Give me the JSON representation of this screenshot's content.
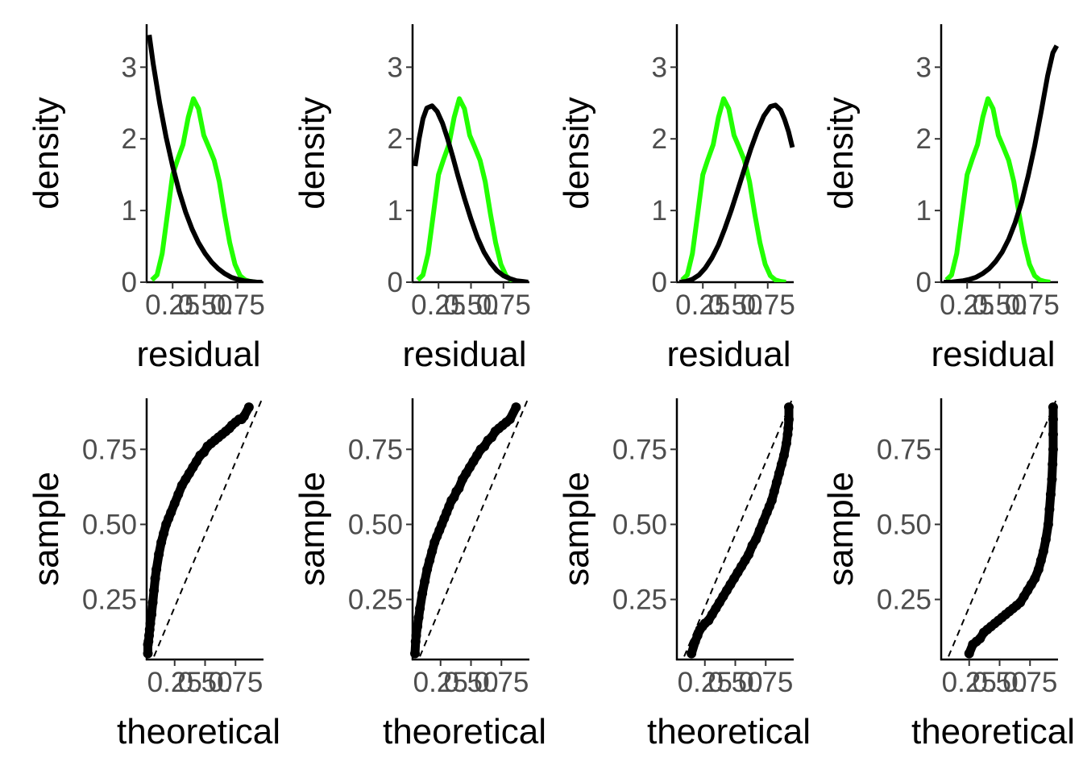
{
  "chart_data": [
    {
      "type": "line",
      "panel": "density-1",
      "xlabel": "residual",
      "ylabel": "density",
      "xlim": [
        0.05,
        0.95
      ],
      "ylim": [
        0,
        3.6
      ],
      "xticks": [
        "0.25",
        "0.50",
        "0.75"
      ],
      "yticks": [
        "0",
        "1",
        "2",
        "3"
      ],
      "colors": {
        "empirical": "#22ff00",
        "reference": "#000000"
      },
      "series": [
        {
          "role": "empirical",
          "x": [
            0.09,
            0.13,
            0.17,
            0.21,
            0.25,
            0.29,
            0.33,
            0.37,
            0.41,
            0.45,
            0.49,
            0.53,
            0.57,
            0.61,
            0.65,
            0.69,
            0.73,
            0.77,
            0.81,
            0.85,
            0.89
          ],
          "y": [
            0.03,
            0.1,
            0.4,
            0.95,
            1.5,
            1.72,
            1.92,
            2.3,
            2.56,
            2.42,
            2.05,
            1.88,
            1.7,
            1.4,
            0.95,
            0.55,
            0.25,
            0.09,
            0.03,
            0.01,
            0.0
          ]
        },
        {
          "role": "reference",
          "x": [
            0.07,
            0.1,
            0.15,
            0.2,
            0.25,
            0.3,
            0.35,
            0.4,
            0.45,
            0.5,
            0.55,
            0.6,
            0.65,
            0.7,
            0.75,
            0.8,
            0.85,
            0.9,
            0.94
          ],
          "y": [
            3.45,
            3.05,
            2.5,
            2.02,
            1.62,
            1.27,
            0.98,
            0.74,
            0.55,
            0.4,
            0.28,
            0.19,
            0.12,
            0.07,
            0.04,
            0.02,
            0.01,
            0.0,
            0.0
          ]
        }
      ]
    },
    {
      "type": "line",
      "panel": "density-2",
      "xlabel": "residual",
      "ylabel": "density",
      "xlim": [
        0.05,
        0.95
      ],
      "ylim": [
        0,
        3.6
      ],
      "xticks": [
        "0.25",
        "0.50",
        "0.75"
      ],
      "yticks": [
        "0",
        "1",
        "2",
        "3"
      ],
      "colors": {
        "empirical": "#22ff00",
        "reference": "#000000"
      },
      "series": [
        {
          "role": "empirical",
          "x": [
            0.09,
            0.13,
            0.17,
            0.21,
            0.25,
            0.29,
            0.33,
            0.37,
            0.41,
            0.45,
            0.49,
            0.53,
            0.57,
            0.61,
            0.65,
            0.69,
            0.73,
            0.77,
            0.81,
            0.85,
            0.89
          ],
          "y": [
            0.03,
            0.1,
            0.4,
            0.95,
            1.5,
            1.72,
            1.92,
            2.3,
            2.56,
            2.42,
            2.05,
            1.88,
            1.7,
            1.4,
            0.95,
            0.55,
            0.25,
            0.09,
            0.03,
            0.01,
            0.0
          ]
        },
        {
          "role": "reference",
          "x": [
            0.07,
            0.1,
            0.13,
            0.16,
            0.2,
            0.24,
            0.28,
            0.32,
            0.36,
            0.4,
            0.45,
            0.5,
            0.55,
            0.6,
            0.65,
            0.7,
            0.75,
            0.8,
            0.85,
            0.9,
            0.94
          ],
          "y": [
            1.62,
            2.0,
            2.28,
            2.43,
            2.46,
            2.38,
            2.22,
            2.0,
            1.75,
            1.48,
            1.17,
            0.88,
            0.62,
            0.42,
            0.27,
            0.16,
            0.09,
            0.05,
            0.02,
            0.01,
            0.0
          ]
        }
      ]
    },
    {
      "type": "line",
      "panel": "density-3",
      "xlabel": "residual",
      "ylabel": "density",
      "xlim": [
        0.05,
        0.95
      ],
      "ylim": [
        0,
        3.6
      ],
      "xticks": [
        "0.25",
        "0.50",
        "0.75"
      ],
      "yticks": [
        "0",
        "1",
        "2",
        "3"
      ],
      "colors": {
        "empirical": "#22ff00",
        "reference": "#000000"
      },
      "series": [
        {
          "role": "empirical",
          "x": [
            0.09,
            0.13,
            0.17,
            0.21,
            0.25,
            0.29,
            0.33,
            0.37,
            0.41,
            0.45,
            0.49,
            0.53,
            0.57,
            0.61,
            0.65,
            0.69,
            0.73,
            0.77,
            0.81,
            0.85,
            0.89
          ],
          "y": [
            0.03,
            0.1,
            0.4,
            0.95,
            1.5,
            1.72,
            1.92,
            2.3,
            2.56,
            2.42,
            2.05,
            1.88,
            1.7,
            1.4,
            0.95,
            0.55,
            0.25,
            0.09,
            0.03,
            0.01,
            0.0
          ]
        },
        {
          "role": "reference",
          "x": [
            0.07,
            0.12,
            0.17,
            0.22,
            0.27,
            0.32,
            0.37,
            0.42,
            0.47,
            0.52,
            0.57,
            0.62,
            0.67,
            0.72,
            0.77,
            0.81,
            0.85,
            0.88,
            0.91,
            0.94
          ],
          "y": [
            0.0,
            0.01,
            0.04,
            0.1,
            0.2,
            0.34,
            0.52,
            0.75,
            1.01,
            1.29,
            1.58,
            1.86,
            2.11,
            2.32,
            2.45,
            2.47,
            2.4,
            2.27,
            2.1,
            1.88
          ]
        }
      ]
    },
    {
      "type": "line",
      "panel": "density-4",
      "xlabel": "residual",
      "ylabel": "density",
      "xlim": [
        0.05,
        0.95
      ],
      "ylim": [
        0,
        3.6
      ],
      "xticks": [
        "0.25",
        "0.50",
        "0.75"
      ],
      "yticks": [
        "0",
        "1",
        "2",
        "3"
      ],
      "colors": {
        "empirical": "#22ff00",
        "reference": "#000000"
      },
      "series": [
        {
          "role": "empirical",
          "x": [
            0.09,
            0.13,
            0.17,
            0.21,
            0.25,
            0.29,
            0.33,
            0.37,
            0.41,
            0.45,
            0.49,
            0.53,
            0.57,
            0.61,
            0.65,
            0.69,
            0.73,
            0.77,
            0.81,
            0.85,
            0.89
          ],
          "y": [
            0.03,
            0.1,
            0.4,
            0.95,
            1.5,
            1.72,
            1.92,
            2.3,
            2.56,
            2.42,
            2.05,
            1.88,
            1.7,
            1.4,
            0.95,
            0.55,
            0.25,
            0.09,
            0.03,
            0.01,
            0.0
          ]
        },
        {
          "role": "reference",
          "x": [
            0.07,
            0.12,
            0.17,
            0.22,
            0.27,
            0.32,
            0.37,
            0.42,
            0.47,
            0.52,
            0.57,
            0.62,
            0.67,
            0.72,
            0.77,
            0.82,
            0.87,
            0.91,
            0.94
          ],
          "y": [
            0.0,
            0.0,
            0.01,
            0.02,
            0.04,
            0.07,
            0.12,
            0.19,
            0.29,
            0.42,
            0.6,
            0.83,
            1.12,
            1.48,
            1.9,
            2.38,
            2.88,
            3.2,
            3.3
          ]
        }
      ]
    },
    {
      "type": "scatter",
      "panel": "qq-1",
      "xlabel": "theoretical",
      "ylabel": "sample",
      "xlim": [
        0.02,
        0.98
      ],
      "ylim": [
        0.05,
        0.92
      ],
      "xticks": [
        "0.25",
        "0.50",
        "0.75"
      ],
      "yticks": [
        "0.25",
        "0.50",
        "0.75"
      ],
      "colors": {
        "points": "#000000",
        "line": "#000000"
      },
      "reference_line": {
        "x": [
          0.08,
          0.97
        ],
        "y": [
          0.06,
          0.92
        ]
      },
      "points": {
        "x": [
          0.03,
          0.03,
          0.035,
          0.04,
          0.045,
          0.05,
          0.06,
          0.07,
          0.08,
          0.09,
          0.1,
          0.12,
          0.14,
          0.16,
          0.18,
          0.2,
          0.22,
          0.25,
          0.28,
          0.31,
          0.34,
          0.37,
          0.4,
          0.43,
          0.46,
          0.49,
          0.52,
          0.55,
          0.58,
          0.61,
          0.64,
          0.67,
          0.7,
          0.72,
          0.75,
          0.78,
          0.8,
          0.82,
          0.86
        ],
        "y": [
          0.07,
          0.1,
          0.11,
          0.13,
          0.15,
          0.17,
          0.2,
          0.24,
          0.28,
          0.32,
          0.35,
          0.4,
          0.44,
          0.47,
          0.5,
          0.52,
          0.54,
          0.57,
          0.6,
          0.63,
          0.65,
          0.67,
          0.69,
          0.71,
          0.73,
          0.74,
          0.76,
          0.77,
          0.78,
          0.79,
          0.8,
          0.81,
          0.82,
          0.83,
          0.84,
          0.85,
          0.85,
          0.86,
          0.89
        ]
      }
    },
    {
      "type": "scatter",
      "panel": "qq-2",
      "xlabel": "theoretical",
      "ylabel": "sample",
      "xlim": [
        0.02,
        0.98
      ],
      "ylim": [
        0.05,
        0.92
      ],
      "xticks": [
        "0.25",
        "0.50",
        "0.75"
      ],
      "yticks": [
        "0.25",
        "0.50",
        "0.75"
      ],
      "colors": {
        "points": "#000000",
        "line": "#000000"
      },
      "reference_line": {
        "x": [
          0.08,
          0.97
        ],
        "y": [
          0.06,
          0.92
        ]
      },
      "points": {
        "x": [
          0.04,
          0.045,
          0.05,
          0.06,
          0.07,
          0.08,
          0.1,
          0.12,
          0.14,
          0.16,
          0.18,
          0.2,
          0.22,
          0.24,
          0.26,
          0.28,
          0.3,
          0.32,
          0.34,
          0.36,
          0.38,
          0.4,
          0.43,
          0.46,
          0.49,
          0.52,
          0.55,
          0.58,
          0.61,
          0.64,
          0.67,
          0.7,
          0.73,
          0.76,
          0.79,
          0.82,
          0.87
        ],
        "y": [
          0.07,
          0.11,
          0.13,
          0.16,
          0.19,
          0.22,
          0.27,
          0.31,
          0.35,
          0.38,
          0.41,
          0.44,
          0.46,
          0.48,
          0.5,
          0.52,
          0.54,
          0.56,
          0.58,
          0.59,
          0.61,
          0.62,
          0.65,
          0.67,
          0.69,
          0.71,
          0.73,
          0.75,
          0.76,
          0.78,
          0.79,
          0.81,
          0.82,
          0.83,
          0.84,
          0.85,
          0.89
        ]
      }
    },
    {
      "type": "scatter",
      "panel": "qq-3",
      "xlabel": "theoretical",
      "ylabel": "sample",
      "xlim": [
        0.02,
        0.98
      ],
      "ylim": [
        0.05,
        0.92
      ],
      "xticks": [
        "0.25",
        "0.50",
        "0.75"
      ],
      "yticks": [
        "0.25",
        "0.50",
        "0.75"
      ],
      "colors": {
        "points": "#000000",
        "line": "#000000"
      },
      "reference_line": {
        "x": [
          0.08,
          0.97
        ],
        "y": [
          0.06,
          0.92
        ]
      },
      "points": {
        "x": [
          0.14,
          0.17,
          0.19,
          0.21,
          0.23,
          0.25,
          0.28,
          0.31,
          0.34,
          0.37,
          0.4,
          0.43,
          0.46,
          0.49,
          0.52,
          0.55,
          0.58,
          0.61,
          0.64,
          0.67,
          0.7,
          0.73,
          0.76,
          0.78,
          0.8,
          0.82,
          0.84,
          0.86,
          0.88,
          0.9,
          0.92,
          0.93,
          0.935,
          0.94,
          0.94
        ],
        "y": [
          0.07,
          0.11,
          0.13,
          0.15,
          0.16,
          0.17,
          0.18,
          0.2,
          0.22,
          0.24,
          0.26,
          0.28,
          0.3,
          0.32,
          0.34,
          0.36,
          0.38,
          0.4,
          0.43,
          0.45,
          0.48,
          0.51,
          0.54,
          0.56,
          0.58,
          0.61,
          0.64,
          0.67,
          0.7,
          0.73,
          0.77,
          0.8,
          0.82,
          0.85,
          0.89
        ]
      }
    },
    {
      "type": "scatter",
      "panel": "qq-4",
      "xlabel": "theoretical",
      "ylabel": "sample",
      "xlim": [
        0.02,
        0.98
      ],
      "ylim": [
        0.05,
        0.92
      ],
      "xticks": [
        "0.25",
        "0.50",
        "0.75"
      ],
      "yticks": [
        "0.25",
        "0.50",
        "0.75"
      ],
      "colors": {
        "points": "#000000",
        "line": "#000000"
      },
      "reference_line": {
        "x": [
          0.08,
          0.97
        ],
        "y": [
          0.06,
          0.92
        ]
      },
      "points": {
        "x": [
          0.25,
          0.28,
          0.31,
          0.34,
          0.37,
          0.4,
          0.43,
          0.46,
          0.49,
          0.52,
          0.55,
          0.58,
          0.61,
          0.64,
          0.67,
          0.7,
          0.73,
          0.76,
          0.79,
          0.82,
          0.84,
          0.86,
          0.88,
          0.9,
          0.91,
          0.92,
          0.93,
          0.935,
          0.94,
          0.94,
          0.94,
          0.94
        ],
        "y": [
          0.07,
          0.1,
          0.11,
          0.12,
          0.14,
          0.15,
          0.16,
          0.17,
          0.18,
          0.19,
          0.2,
          0.21,
          0.22,
          0.23,
          0.24,
          0.26,
          0.28,
          0.3,
          0.32,
          0.35,
          0.38,
          0.41,
          0.45,
          0.5,
          0.55,
          0.6,
          0.65,
          0.7,
          0.75,
          0.8,
          0.85,
          0.89
        ]
      }
    }
  ]
}
